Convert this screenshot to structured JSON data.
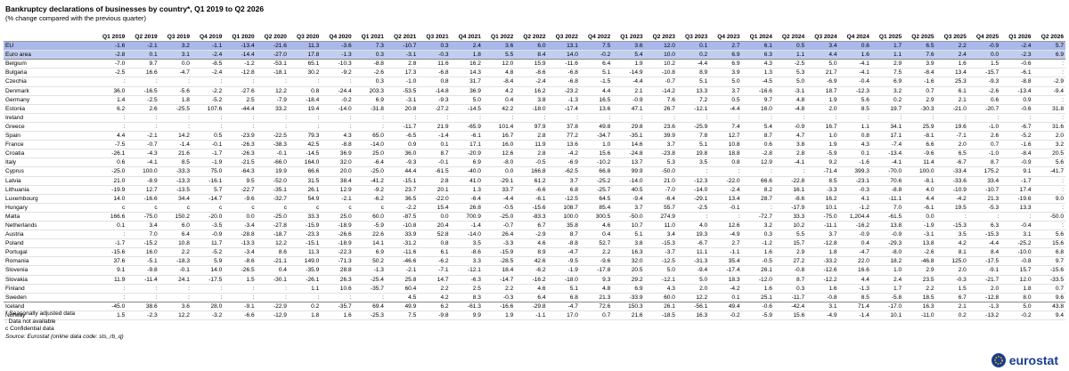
{
  "title": "Bankruptcy declarations of businesses by country*, Q1 2019 to Q2 2026",
  "subtitle": "(% change compared with the previous quarter)",
  "table": {
    "columns": [
      "Q1 2019",
      "Q2 2019",
      "Q3 2019",
      "Q4 2019",
      "Q1 2020",
      "Q2 2020",
      "Q3 2020",
      "Q4 2020",
      "Q1 2021",
      "Q2 2021",
      "Q3 2021",
      "Q4 2021",
      "Q1 2022",
      "Q2 2022",
      "Q3 2022",
      "Q4 2022",
      "Q1 2023",
      "Q2 2023",
      "Q3 2023",
      "Q4 2023",
      "Q1 2024",
      "Q2 2024",
      "Q3 2024",
      "Q4 2024",
      "Q1 2025",
      "Q2 2025",
      "Q3 2025",
      "Q4 2025",
      "Q1 2026",
      "Q2 2026"
    ],
    "rows": [
      {
        "label": "EU",
        "values": [
          "-1.6",
          "-2.1",
          "3.2",
          "-1.1",
          "-13.4",
          "-21.6",
          "11.3",
          "-3.6",
          "7.3",
          "-10.7",
          "0.3",
          "2.4",
          "3.6",
          "6.0",
          "13.1",
          "7.5",
          "3.6",
          "12.0",
          "0.1",
          "2.7",
          "6.1",
          "0.5",
          "3.4",
          "0.6",
          "1.7",
          "6.5",
          "2.2",
          "-0.9",
          "-2.4",
          "5.7"
        ]
      },
      {
        "label": "Euro area",
        "values": [
          "-2.8",
          "0.1",
          "3.1",
          "-2.4",
          "-14.4",
          "-27.0",
          "17.8",
          "-1.3",
          "0.3",
          "-3.1",
          "-0.3",
          "1.8",
          "5.5",
          "8.4",
          "14.0",
          "-0.2",
          "5.4",
          "10.0",
          "0.2",
          "6.9",
          "6.3",
          "1.1",
          "4.4",
          "1.6",
          "1.1",
          "7.6",
          "2.4",
          "0.0",
          "-2.3",
          "6.9"
        ]
      },
      {
        "label": "Belgium",
        "values": [
          "-7.0",
          "9.7",
          "0.0",
          "-8.5",
          "-1.2",
          "-53.1",
          "65.1",
          "-10.3",
          "-8.8",
          "2.8",
          "11.6",
          "16.2",
          "12.0",
          "15.9",
          "-11.6",
          "6.4",
          "1.9",
          "10.2",
          "-4.4",
          "6.9",
          "4.3",
          "-2.5",
          "5.0",
          "-4.1",
          "2.9",
          "3.9",
          "1.6",
          "1.5",
          "-0.6",
          ":"
        ]
      },
      {
        "label": "Bulgaria",
        "values": [
          "-2.5",
          "16.6",
          "-4.7",
          "-2.4",
          "-12.8",
          "-18.1",
          "30.2",
          "-9.2",
          "-2.6",
          "17.3",
          "-6.8",
          "14.3",
          "4.8",
          "-8.6",
          "-6.8",
          "5.1",
          "-14.9",
          "-10.8",
          "8.9",
          "3.9",
          "1.3",
          "5.3",
          "21.7",
          "-4.1",
          "7.5",
          "-8.4",
          "13.4",
          "-15.7",
          "-6.1",
          ":"
        ]
      },
      {
        "label": "Czechia",
        "values": [
          ":",
          ":",
          ":",
          ":",
          ":",
          ":",
          ":",
          ":",
          "0.3",
          "-1.0",
          "0.8",
          "31.7",
          "-8.4",
          "-2.4",
          "-6.8",
          "-1.5",
          "-4.4",
          "-0.7",
          "5.1",
          "5.0",
          "-4.5",
          "5.0",
          "-6.9",
          "-0.4",
          "6.9",
          "-1.6",
          "25.3",
          "-9.3",
          "-8.8",
          "-2.9"
        ]
      },
      {
        "label": "Denmark",
        "values": [
          "36.0",
          "-16.5",
          "-5.6",
          "-2.2",
          "-27.6",
          "12.2",
          "0.8",
          "-24.4",
          "203.3",
          "-53.5",
          "-14.8",
          "36.9",
          "4.2",
          "16.2",
          "-23.2",
          "4.4",
          "2.1",
          "-14.2",
          "13.3",
          "3.7",
          "-16.6",
          "-3.1",
          "18.7",
          "-12.3",
          "3.2",
          "0.7",
          "6.1",
          "-2.6",
          "-13.4",
          "-9.4"
        ]
      },
      {
        "label": "Germany",
        "values": [
          "1.4",
          "-2.5",
          "1.8",
          "-5.2",
          "2.5",
          "-7.9",
          "-18.4",
          "-0.2",
          "6.9",
          "-3.1",
          "-9.3",
          "5.0",
          "0.4",
          "3.8",
          "-1.3",
          "16.5",
          "-0.9",
          "7.6",
          "7.2",
          "0.5",
          "9.7",
          "4.8",
          "1.9",
          "5.6",
          "0.2",
          "2.9",
          "2.1",
          "0.6",
          "0.9",
          ":"
        ]
      },
      {
        "label": "Estonia",
        "values": [
          "6.2",
          "2.6",
          "-25.5",
          "107.6",
          "-44.4",
          "33.2",
          "19.4",
          "-14.0",
          "-31.8",
          "20.8",
          "-27.2",
          "-14.5",
          "42.2",
          "-18.0",
          "-17.4",
          "13.6",
          "47.1",
          "26.7",
          "-12.1",
          "-4.4",
          "16.0",
          "-4.8",
          "2.0",
          "8.5",
          "19.7",
          "-30.3",
          "-21.0",
          "-20.7",
          "-0.6",
          "31.8"
        ]
      },
      {
        "label": "Ireland",
        "values": [
          ":",
          ":",
          ":",
          ":",
          ":",
          ":",
          ":",
          ":",
          ":",
          ":",
          ":",
          ":",
          ":",
          ":",
          ":",
          ":",
          ":",
          ":",
          ":",
          ":",
          ":",
          ":",
          ":",
          ":",
          ":",
          ":",
          ":",
          ":",
          ":",
          ":"
        ]
      },
      {
        "label": "Greece",
        "values": [
          ":",
          ":",
          ":",
          ":",
          ":",
          ":",
          ":",
          ":",
          ":",
          "-11.7",
          "21.9",
          "-65.9",
          "101.4",
          "97.9",
          "37.8",
          "49.8",
          "29.8",
          "23.6",
          "-25.9",
          "7.4",
          "5.4",
          "-0.9",
          "16.7",
          "1.1",
          "34.1",
          "25.9",
          "19.6",
          "-1.0",
          "-6.7",
          "31.6"
        ]
      },
      {
        "label": "Spain",
        "values": [
          "4.4",
          "-2.1",
          "14.2",
          "0.5",
          "-23.9",
          "-22.5",
          "79.3",
          "4.3",
          "65.0",
          "-6.5",
          "-1.4",
          "-6.1",
          "16.7",
          "2.8",
          "77.2",
          "-34.7",
          "-35.1",
          "39.9",
          "7.8",
          "12.7",
          "8.7",
          "4.7",
          "1.0",
          "0.8",
          "17.1",
          "-8.1",
          "-7.1",
          "2.6",
          "-5.2",
          "2.0"
        ]
      },
      {
        "label": "France",
        "values": [
          "-7.5",
          "-0.7",
          "-1.4",
          "-0.1",
          "-26.3",
          "-38.3",
          "42.5",
          "-8.8",
          "-14.0",
          "0.9",
          "0.1",
          "17.1",
          "16.0",
          "11.9",
          "13.6",
          "1.0",
          "14.6",
          "3.7",
          "5.1",
          "10.8",
          "0.6",
          "3.8",
          "1.9",
          "4.3",
          "-7.4",
          "6.6",
          "2.0",
          "0.7",
          "-1.6",
          "3.2"
        ]
      },
      {
        "label": "Croatia",
        "values": [
          "-26.1",
          "-4.3",
          "21.6",
          "-1.7",
          "-26.3",
          "-0.1",
          "-14.5",
          "36.9",
          "25.0",
          "36.0",
          "8.7",
          "-20.9",
          "12.6",
          "2.8",
          "-4.2",
          "15.6",
          "-24.8",
          "-23.8",
          "19.8",
          "18.8",
          "-2.8",
          "2.8",
          "-5.9",
          "0.1",
          "-13.4",
          "-9.6",
          "6.5",
          "-1.0",
          "-8.4",
          "20.5"
        ]
      },
      {
        "label": "Italy",
        "values": [
          "0.6",
          "-4.1",
          "8.5",
          "-1.9",
          "-21.5",
          "-66.0",
          "164.0",
          "32.0",
          "-6.4",
          "-9.3",
          "-0.1",
          "6.9",
          "-8.0",
          "-0.5",
          "-6.9",
          "-10.2",
          "13.7",
          "5.3",
          "3.5",
          "0.8",
          "12.9",
          "-4.1",
          "9.2",
          "-1.6",
          "-4.1",
          "11.4",
          "-6.7",
          "8.7",
          "-0.9",
          "5.6"
        ]
      },
      {
        "label": "Cyprus",
        "values": [
          "-25.0",
          "100.0",
          "-33.3",
          "75.0",
          "-64.3",
          "19.9",
          "66.6",
          "20.0",
          "-25.0",
          "44.4",
          "-61.5",
          "-40.0",
          "0.0",
          "166.8",
          "-62.5",
          "66.8",
          "99.9",
          "-50.0",
          ":",
          ":",
          ":",
          ":",
          "-71.4",
          "399.3",
          "-70.0",
          "100.0",
          "-33.4",
          "175.2",
          "9.1",
          "-41.7"
        ]
      },
      {
        "label": "Latvia",
        "values": [
          "21.0",
          "-8.9",
          "-13.3",
          "-16.1",
          "9.5",
          "-52.0",
          "31.5",
          "38.4",
          "-41.2",
          "-15.1",
          "2.8",
          "41.0",
          "-29.1",
          "61.2",
          "3.7",
          "-25.2",
          "-14.0",
          "21.0",
          "-12.3",
          "-22.0",
          "66.6",
          "-22.8",
          "8.5",
          "-23.1",
          "70.6",
          "-8.1",
          "-33.6",
          "33.4",
          "-1.7",
          ":"
        ]
      },
      {
        "label": "Lithuania",
        "values": [
          "-19.9",
          "12.7",
          "-13.5",
          "5.7",
          "-22.7",
          "-35.1",
          "26.1",
          "12.9",
          "-9.2",
          "23.7",
          "20.1",
          "1.3",
          "33.7",
          "-6.6",
          "6.8",
          "-25.7",
          "40.5",
          "-7.0",
          "-14.0",
          "-2.4",
          "8.2",
          "16.1",
          "-3.3",
          "-0.3",
          "-8.8",
          "4.0",
          "-10.9",
          "-10.7",
          "17.4",
          ":"
        ]
      },
      {
        "label": "Luxembourg",
        "values": [
          "14.0",
          "-16.6",
          "34.4",
          "-14.7",
          "-9.6",
          "-32.7",
          "54.9",
          "-2.1",
          "-6.2",
          "36.5",
          "-22.0",
          "-6.4",
          "-4.4",
          "-6.1",
          "-12.5",
          "64.5",
          "-9.4",
          "-6.4",
          "-29.1",
          "13.4",
          "28.7",
          "-8.6",
          "16.2",
          "4.1",
          "-11.1",
          "4.4",
          "-4.2",
          "21.3",
          "-19.6",
          "9.0"
        ]
      },
      {
        "label": "Hungary",
        "values": [
          "c",
          "c",
          "c",
          "c",
          "c",
          "c",
          "c",
          "c",
          "c",
          "-2.2",
          "15.4",
          "26.8",
          "-0.5",
          "-15.6",
          "108.7",
          "85.4",
          "3.7",
          "55.7",
          "-2.5",
          "-0.1",
          ":",
          "-17.9",
          "10.1",
          "-1.2",
          "7.0",
          "-6.1",
          "19.5",
          "-5.3",
          "13.3",
          ":"
        ]
      },
      {
        "label": "Malta",
        "values": [
          "166.6",
          "-75.0",
          "150.2",
          "-20.0",
          "0.0",
          "-25.0",
          "33.3",
          "25.0",
          "60.0",
          "-87.5",
          "0.0",
          "700.9",
          "-25.0",
          "-83.3",
          "100.0",
          "300.5",
          "-50.0",
          "274.9",
          ":",
          ":",
          "-72.7",
          "33.3",
          "-75.0",
          "1,204.4",
          "-61.5",
          "0.0",
          ":",
          ":",
          ":",
          "-50.0"
        ]
      },
      {
        "label": "Netherlands",
        "values": [
          "0.1",
          "3.4",
          "6.0",
          "-3.5",
          "-3.4",
          "-27.8",
          "-15.9",
          "-18.9",
          "-5.9",
          "-10.8",
          "20.4",
          "-1.4",
          "-0.7",
          "6.7",
          "35.8",
          "4.6",
          "10.7",
          "11.0",
          "4.0",
          "12.6",
          "3.2",
          "10.2",
          "-11.1",
          "-16.2",
          "13.8",
          "-1.9",
          "-15.3",
          "6.3",
          "-0.4",
          ":"
        ]
      },
      {
        "label": "Austria",
        "values": [
          ":",
          "7.0",
          "6.4",
          "-0.9",
          "-28.8",
          "-18.7",
          "-23.3",
          "-26.6",
          "22.6",
          "33.9",
          "52.8",
          "-14.0",
          "26.4",
          "-2.9",
          "8.7",
          "0.4",
          "5.1",
          "3.4",
          "19.3",
          "-4.9",
          "0.3",
          "5.5",
          "3.7",
          "-0.9",
          "-0.9",
          "-3.1",
          "3.5",
          "-15.3",
          "3.1",
          "5.6"
        ]
      },
      {
        "label": "Poland",
        "values": [
          "-1.7",
          "-15.2",
          "10.8",
          "11.7",
          "-13.3",
          "12.2",
          "-15.1",
          "-18.9",
          "14.1",
          "-31.2",
          "0.8",
          "3.5",
          "-3.3",
          "4.6",
          "-8.8",
          "52.7",
          "3.8",
          "-15.3",
          "-6.7",
          "2.7",
          "-1.2",
          "15.7",
          "-12.8",
          "0.4",
          "-29.3",
          "13.8",
          "4.2",
          "-4.4",
          "-25.2",
          "15.6"
        ]
      },
      {
        "label": "Portugal",
        "values": [
          "-15.6",
          "16.0",
          "2.2",
          "-5.2",
          "-3.4",
          "8.6",
          "11.3",
          "-22.3",
          "6.9",
          "-11.6",
          "6.1",
          "-8.6",
          "-15.9",
          "8.9",
          "-4.7",
          "2.2",
          "16.3",
          "-3.7",
          "11.1",
          "-1.1",
          "1.6",
          "2.9",
          "1.8",
          "-4.7",
          "-8.0",
          "-2.6",
          "8.1",
          "8.4",
          "-10.0",
          "6.8"
        ]
      },
      {
        "label": "Romania",
        "values": [
          "37.6",
          "-5.1",
          "-18.3",
          "5.9",
          "-8.6",
          "-21.1",
          "149.0",
          "-71.3",
          "50.2",
          "-46.6",
          "-6.2",
          "3.3",
          "-28.5",
          "42.6",
          "-9.5",
          "-9.6",
          "32.0",
          "-12.5",
          "-31.3",
          "35.4",
          "-0.5",
          "27.2",
          "-33.2",
          "22.0",
          "18.2",
          "-46.8",
          "125.0",
          "-17.5",
          "-0.8",
          "9.7"
        ]
      },
      {
        "label": "Slovenia",
        "values": [
          "9.1",
          "-9.8",
          "-0.1",
          "14.0",
          "-26.5",
          "0.4",
          "-35.9",
          "28.8",
          "-1.3",
          "-2.1",
          "-7.1",
          "-12.1",
          "18.4",
          "-6.2",
          "-1.9",
          "-17.8",
          "20.5",
          "5.0",
          "-9.4",
          "-17.4",
          "26.1",
          "-0.8",
          "-12.6",
          "16.6",
          "1.0",
          "2.9",
          "2.0",
          "-9.1",
          "15.7",
          "-15.6"
        ]
      },
      {
        "label": "Slovakia",
        "values": [
          "11.9",
          "-11.4",
          "24.1",
          "-17.5",
          "1.5",
          "-30.1",
          "-26.1",
          "26.3",
          "-25.4",
          "25.8",
          "14.7",
          "-6.3",
          "-14.7",
          "-16.2",
          "-18.0",
          "9.3",
          "29.2",
          "-12.1",
          "5.0",
          "18.3",
          "-12.0",
          "8.7",
          "-12.2",
          "4.4",
          "2.4",
          "23.5",
          "-0.3",
          "-21.7",
          "12.0",
          "-33.5"
        ]
      },
      {
        "label": "Finland",
        "values": [
          ":",
          ":",
          ":",
          ":",
          ":",
          ":",
          "1.1",
          "10.6",
          "-35.7",
          "60.4",
          "2.2",
          "2.5",
          "2.2",
          "4.6",
          "5.1",
          "4.8",
          "6.9",
          "4.3",
          "2.0",
          "-4.2",
          "1.6",
          "0.3",
          "1.6",
          "-1.3",
          "1.7",
          "2.2",
          "1.5",
          "2.0",
          "1.8",
          "0.7"
        ]
      },
      {
        "label": "Sweden",
        "values": [
          ":",
          ":",
          ":",
          ":",
          ":",
          ":",
          ":",
          ":",
          ":",
          "4.5",
          "4.2",
          "8.3",
          "-0.3",
          "6.4",
          "6.8",
          "21.3",
          "-33.9",
          "60.0",
          "12.2",
          "0.1",
          "25.1",
          "-11.7",
          "-0.8",
          "8.5",
          "-5.8",
          "18.5",
          "6.7",
          "-12.8",
          "8.0",
          "9.6"
        ]
      },
      {
        "label": "Iceland",
        "values": [
          "-45.0",
          "38.6",
          "3.6",
          "28.0",
          "-9.1",
          "-22.9",
          "0.2",
          "-35.7",
          "69.4",
          "49.9",
          "6.2",
          "-61.3",
          "-16.6",
          "-29.8",
          "-4.7",
          "72.6",
          "150.3",
          "26.1",
          "-56.1",
          "49.4",
          "-0.6",
          "-42.4",
          "3.1",
          "71.4",
          "-17.0",
          "16.3",
          "2.1",
          "-1.3",
          "5.0",
          "43.8"
        ]
      },
      {
        "label": "Norway",
        "values": [
          "1.5",
          "-2.3",
          "12.2",
          "-3.2",
          "-6.6",
          "-12.9",
          "1.8",
          "1.6",
          "-25.3",
          "7.5",
          "-9.8",
          "9.9",
          "1.9",
          "-1.1",
          "17.0",
          "0.7",
          "21.6",
          "-18.5",
          "16.3",
          "-0.2",
          "-5.9",
          "15.6",
          "-4.9",
          "-1.4",
          "10.1",
          "-11.0",
          "0.2",
          "-13.2",
          "-0.2",
          "9.4"
        ]
      }
    ]
  },
  "notes": [
    "* Seasonally adjusted data",
    ": Data not available",
    "c Confidential data"
  ],
  "source": "Source: Eurostat (online data code: sts_rb_q)",
  "logo": "eurostat"
}
